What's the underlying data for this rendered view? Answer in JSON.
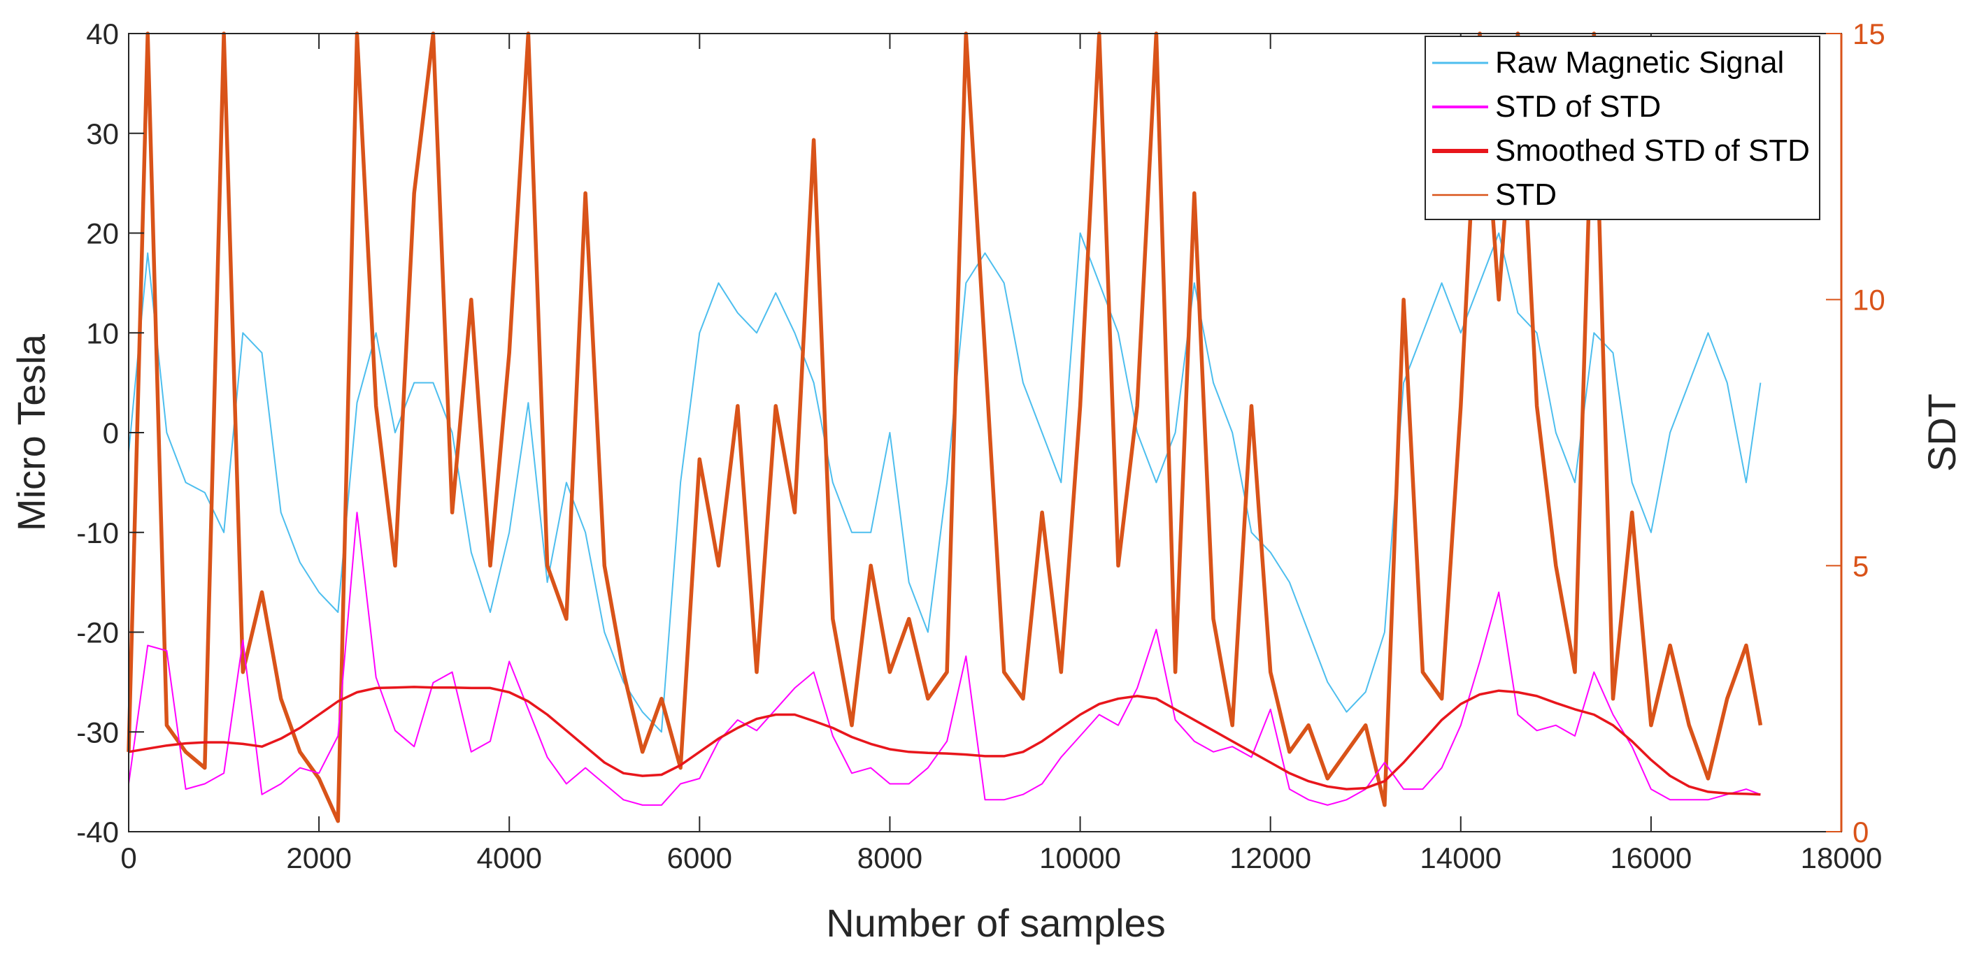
{
  "chart_data": {
    "type": "line",
    "x": [
      0,
      200,
      400,
      600,
      800,
      1000,
      1200,
      1400,
      1600,
      1800,
      2000,
      2200,
      2400,
      2600,
      2800,
      3000,
      3200,
      3400,
      3600,
      3800,
      4000,
      4200,
      4400,
      4600,
      4800,
      5000,
      5200,
      5400,
      5600,
      5800,
      6000,
      6200,
      6400,
      6600,
      6800,
      7000,
      7200,
      7400,
      7600,
      7800,
      8000,
      8200,
      8400,
      8600,
      8800,
      9000,
      9200,
      9400,
      9600,
      9800,
      10000,
      10200,
      10400,
      10600,
      10800,
      11000,
      11200,
      11400,
      11600,
      11800,
      12000,
      12200,
      12400,
      12600,
      12800,
      13000,
      13200,
      13400,
      13600,
      13800,
      14000,
      14200,
      14400,
      14600,
      14800,
      15000,
      15200,
      15400,
      15600,
      15800,
      16000,
      16200,
      16400,
      16600,
      16800,
      17000,
      17150
    ],
    "xlabel": "Number of samples",
    "xlim": [
      0,
      18000
    ],
    "xticks": [
      "0",
      "2000",
      "4000",
      "6000",
      "8000",
      "10000",
      "12000",
      "14000",
      "16000",
      "18000"
    ],
    "ylabel_left": "Micro Tesla",
    "ylim_left": [
      -40,
      40
    ],
    "yticks_left": [
      "-40",
      "-30",
      "-20",
      "-10",
      "0",
      "10",
      "20",
      "30",
      "40"
    ],
    "ylabel_right": "SDT",
    "ylim_right": [
      0,
      15
    ],
    "yticks_right": [
      "0",
      "5",
      "10",
      "15"
    ],
    "grid": false,
    "legend_position": "top-right",
    "series": [
      {
        "name": "Raw Magnetic Signal",
        "axis": "left",
        "color": "#4DBEEE",
        "values": [
          -2,
          18,
          0,
          -5,
          -6,
          -10,
          10,
          8,
          -8,
          -13,
          -16,
          -18,
          3,
          10,
          0,
          5,
          5,
          0,
          -12,
          -18,
          -10,
          3,
          -15,
          -5,
          -10,
          -20,
          -25,
          -28,
          -30,
          -5,
          10,
          15,
          12,
          10,
          14,
          10,
          5,
          -5,
          -10,
          -10,
          0,
          -15,
          -20,
          -5,
          15,
          18,
          15,
          5,
          0,
          -5,
          20,
          15,
          10,
          0,
          -5,
          0,
          15,
          5,
          0,
          -10,
          -12,
          -15,
          -20,
          -25,
          -28,
          -26,
          -20,
          5,
          10,
          15,
          10,
          15,
          20,
          12,
          10,
          0,
          -5,
          10,
          8,
          -5,
          -10,
          0,
          5,
          10,
          5,
          -5,
          5
        ]
      },
      {
        "name": "STD of STD",
        "axis": "right",
        "color": "#FF00FF",
        "values": [
          0.9,
          3.5,
          3.4,
          0.8,
          0.9,
          1.1,
          3.6,
          0.7,
          0.9,
          1.2,
          1.1,
          1.8,
          6.0,
          2.9,
          1.9,
          1.6,
          2.8,
          3.0,
          1.5,
          1.7,
          3.2,
          2.3,
          1.4,
          0.9,
          1.2,
          0.9,
          0.6,
          0.5,
          0.5,
          0.9,
          1.0,
          1.7,
          2.1,
          1.9,
          2.3,
          2.7,
          3.0,
          1.8,
          1.1,
          1.2,
          0.9,
          0.9,
          1.2,
          1.7,
          3.3,
          0.6,
          0.6,
          0.7,
          0.9,
          1.4,
          1.8,
          2.2,
          2.0,
          2.7,
          3.8,
          2.1,
          1.7,
          1.5,
          1.6,
          1.4,
          2.3,
          0.8,
          0.6,
          0.5,
          0.6,
          0.8,
          1.3,
          0.8,
          0.8,
          1.2,
          2.0,
          3.2,
          4.5,
          2.2,
          1.9,
          2.0,
          1.8,
          3.0,
          2.2,
          1.6,
          0.8,
          0.6,
          0.6,
          0.6,
          0.7,
          0.8,
          0.7
        ]
      },
      {
        "name": "Smoothed STD of STD",
        "axis": "right",
        "color": "#E8161C",
        "values": [
          1.5,
          1.56,
          1.62,
          1.66,
          1.68,
          1.68,
          1.65,
          1.6,
          1.75,
          1.95,
          2.2,
          2.45,
          2.62,
          2.7,
          2.71,
          2.72,
          2.71,
          2.71,
          2.7,
          2.7,
          2.62,
          2.45,
          2.2,
          1.9,
          1.6,
          1.3,
          1.1,
          1.05,
          1.07,
          1.25,
          1.5,
          1.75,
          1.95,
          2.12,
          2.2,
          2.2,
          2.08,
          1.95,
          1.78,
          1.65,
          1.55,
          1.5,
          1.48,
          1.47,
          1.45,
          1.42,
          1.42,
          1.5,
          1.7,
          1.95,
          2.2,
          2.4,
          2.5,
          2.55,
          2.5,
          2.3,
          2.1,
          1.9,
          1.7,
          1.5,
          1.3,
          1.1,
          0.95,
          0.85,
          0.8,
          0.82,
          0.95,
          1.3,
          1.7,
          2.1,
          2.4,
          2.58,
          2.65,
          2.62,
          2.55,
          2.42,
          2.3,
          2.2,
          2.0,
          1.7,
          1.35,
          1.05,
          0.85,
          0.75,
          0.72,
          0.71,
          0.7
        ]
      },
      {
        "name": "STD",
        "axis": "right",
        "color": "#D95319",
        "values": [
          1.5,
          15.0,
          2.0,
          1.5,
          1.2,
          15.0,
          3.0,
          4.5,
          2.5,
          1.5,
          1.0,
          0.2,
          15.0,
          8.0,
          5.0,
          12.0,
          15.0,
          6.0,
          10.0,
          5.0,
          9.0,
          15.0,
          5.0,
          4.0,
          12.0,
          5.0,
          3.0,
          1.5,
          2.5,
          1.2,
          7.0,
          5.0,
          8.0,
          3.0,
          8.0,
          6.0,
          13.0,
          4.0,
          2.0,
          5.0,
          3.0,
          4.0,
          2.5,
          3.0,
          15.0,
          9.0,
          3.0,
          2.5,
          6.0,
          3.0,
          8.0,
          15.0,
          5.0,
          8.0,
          15.0,
          3.0,
          12.0,
          4.0,
          2.0,
          8.0,
          3.0,
          1.5,
          2.0,
          1.0,
          1.5,
          2.0,
          0.5,
          10.0,
          3.0,
          2.5,
          8.0,
          15.0,
          10.0,
          15.0,
          8.0,
          5.0,
          3.0,
          15.0,
          2.5,
          6.0,
          2.0,
          3.5,
          2.0,
          1.0,
          2.5,
          3.5,
          2.0
        ]
      }
    ]
  }
}
